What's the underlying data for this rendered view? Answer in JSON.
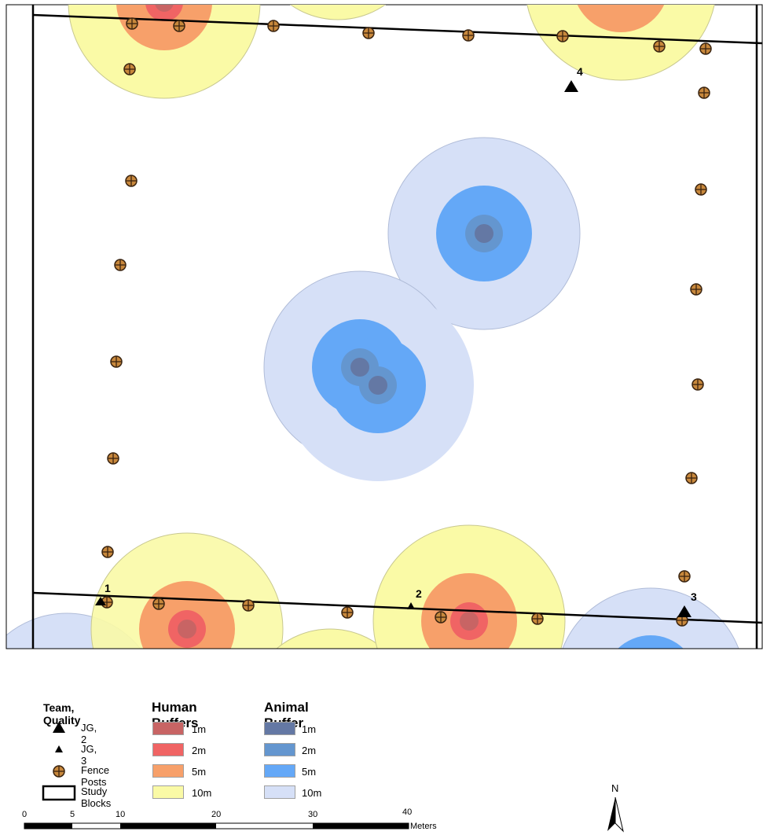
{
  "map": {
    "buffer_colors": {
      "human": {
        "1m": "#c86464",
        "2m": "#f06464",
        "5m": "#f7a06a",
        "10m": "#fafaa6"
      },
      "animal": {
        "1m": "#6478a4",
        "2m": "#6496cf",
        "5m": "#64a8f7",
        "10m": "#d6e0f7"
      }
    },
    "point_labels": [
      "4",
      "1",
      "2",
      "3"
    ]
  },
  "legend": {
    "team_title": "Team, Quality",
    "jg2_label": "JG, 2",
    "jg3_label": "JG, 3",
    "fence_label": "Fence Posts",
    "study_label": "Study Blocks",
    "human_title": "Human Buffers",
    "animal_title": "Animal Buffer",
    "human_items": [
      "1m",
      "2m",
      "5m",
      "10m"
    ],
    "animal_items": [
      "1m",
      "2m",
      "5m",
      "10m"
    ]
  },
  "scale_bar": {
    "ticks": [
      "0",
      "5",
      "10",
      "20",
      "30",
      "40"
    ],
    "unit": "Meters"
  },
  "north_arrow": {
    "label": "N"
  }
}
